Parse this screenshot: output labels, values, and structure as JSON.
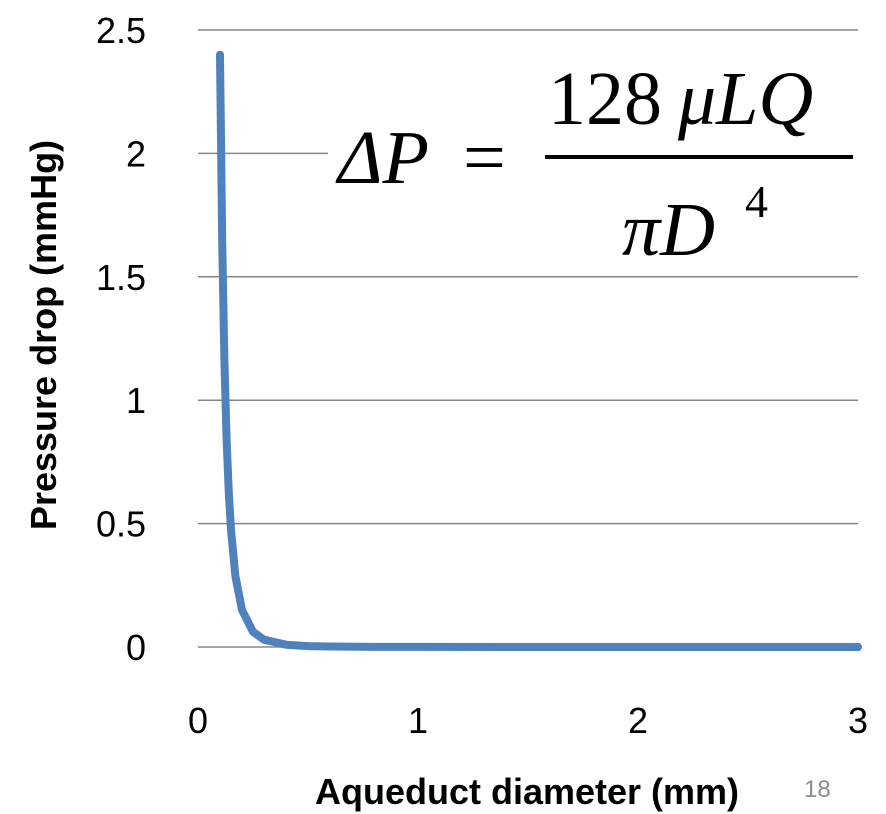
{
  "chart_data": {
    "type": "line",
    "xlabel": "Aqueduct diameter (mm)",
    "ylabel": "Pressure drop (mmHg)",
    "xlim": [
      0,
      3
    ],
    "ylim": [
      0,
      2.5
    ],
    "x_ticks": [
      "0",
      "1",
      "2",
      "3"
    ],
    "y_ticks": [
      "0",
      "0.5",
      "1",
      "1.5",
      "2",
      "2.5"
    ],
    "grid": "horizontal",
    "legend": "none",
    "series": [
      {
        "color": "#4f81bd",
        "x": [
          0.1,
          0.11,
          0.12,
          0.13,
          0.14,
          0.15,
          0.17,
          0.2,
          0.25,
          0.3,
          0.4,
          0.5,
          0.6,
          0.8,
          1.0,
          1.5,
          2.0,
          2.5,
          3.0
        ],
        "y": [
          2.4,
          1.64,
          1.16,
          0.84,
          0.625,
          0.474,
          0.287,
          0.15,
          0.0614,
          0.0296,
          0.00938,
          0.00384,
          0.00185,
          0.000586,
          0.00024,
          4.74e-05,
          1.5e-05,
          6.1e-06,
          3e-06
        ]
      }
    ]
  },
  "formula": {
    "lhs": "ΔP",
    "equals": "=",
    "numerator_number": "128",
    "numerator_vars": "μLQ",
    "denominator_base": "πD",
    "denominator_exp": "4"
  },
  "slide_number": "18"
}
